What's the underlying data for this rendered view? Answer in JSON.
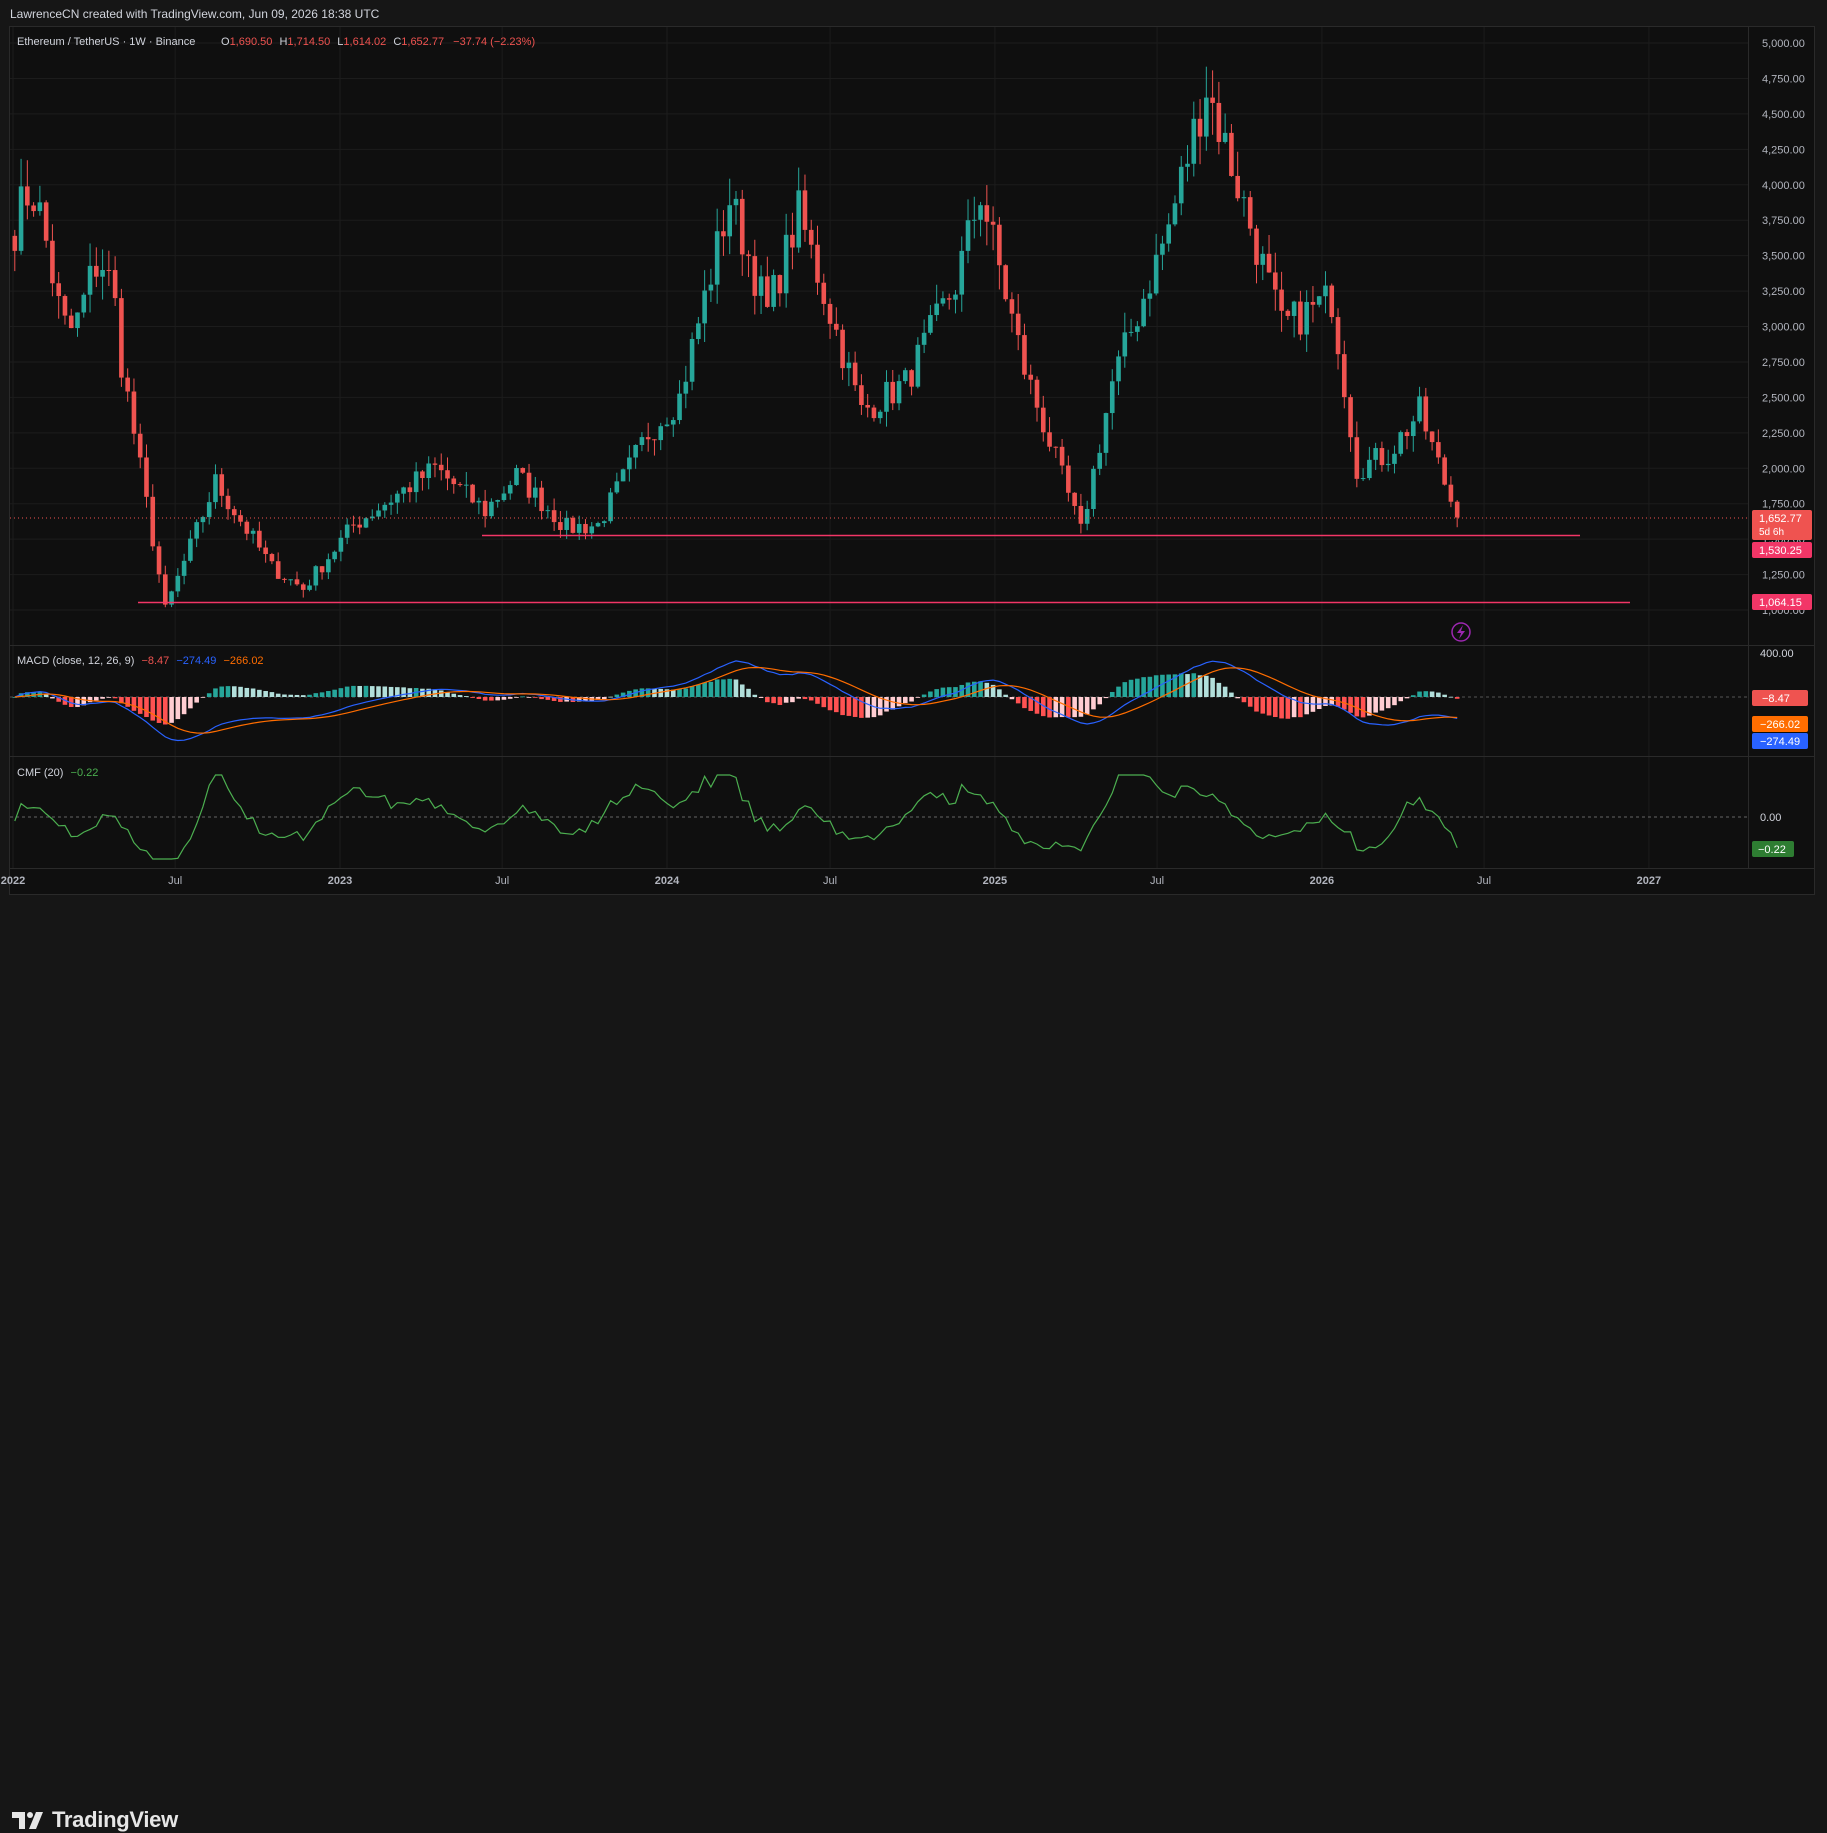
{
  "header": {
    "attribution": "LawrenceCN created with TradingView.com, Jun 09, 2026 18:38 UTC"
  },
  "legend": {
    "symbol": "Ethereum / TetherUS · 1W · Binance",
    "o_key": "O",
    "o_val": "1,690.50",
    "h_key": "H",
    "h_val": "1,714.50",
    "l_key": "L",
    "l_val": "1,614.02",
    "c_key": "C",
    "c_val": "1,652.77",
    "change": "−37.74 (−2.23%)"
  },
  "macd_legend": {
    "name": "MACD (close, 12, 26, 9)",
    "v1": "−8.47",
    "v2": "−274.49",
    "v3": "−266.02"
  },
  "cmf_legend": {
    "name": "CMF (20)",
    "v1": "−0.22"
  },
  "price_tag": {
    "price": "1,652.77",
    "countdown": "5d 6h"
  },
  "level_tags": [
    "1,530.25",
    "1,064.15"
  ],
  "macd_tags": [
    "400.00",
    "−8.47",
    "−266.02",
    "−274.49"
  ],
  "cmf_tags": [
    "0.00",
    "−0.22"
  ],
  "brand": {
    "name": "TradingView"
  },
  "colors": {
    "up": "#26a69a",
    "down": "#ef5350",
    "level": "#f23667",
    "macd": "#2962ff",
    "signal": "#ff6d00",
    "cmf": "#4caf50"
  },
  "chart_data": {
    "type": "candlestick",
    "title": "Ethereum / TetherUS · 1W · Binance",
    "interval": "1W",
    "y_axis": {
      "ticks": [
        "1,000.00",
        "1,250.00",
        "1,500.00",
        "1,750.00",
        "2,000.00",
        "2,250.00",
        "2,500.00",
        "2,750.00",
        "3,000.00",
        "3,250.00",
        "3,500.00",
        "3,750.00",
        "4,000.00",
        "4,250.00",
        "4,500.00",
        "4,750.00",
        "5,000.00"
      ],
      "range": [
        970,
        5030
      ]
    },
    "x_axis": {
      "ticks": [
        "2022",
        "Jul",
        "2023",
        "Jul",
        "2024",
        "Jul",
        "2025",
        "Jul",
        "2026",
        "Jul",
        "2027"
      ]
    },
    "keypoints": [
      [
        "2022-04-25",
        3000
      ],
      [
        "2022-06-20",
        1000
      ],
      [
        "2022-08-15",
        1900
      ],
      [
        "2022-10-17",
        1300
      ],
      [
        "2022-11-21",
        1150
      ],
      [
        "2023-01-16",
        1600
      ],
      [
        "2023-04-17",
        2000
      ],
      [
        "2023-06-12",
        1700
      ],
      [
        "2023-07-17",
        1950
      ],
      [
        "2023-09-11",
        1580
      ],
      [
        "2023-10-16",
        1600
      ],
      [
        "2023-12-11",
        2250
      ],
      [
        "2024-01-15",
        2500
      ],
      [
        "2024-03-11",
        3900
      ],
      [
        "2024-04-22",
        3100
      ],
      [
        "2024-05-27",
        3800
      ],
      [
        "2024-08-05",
        2400
      ],
      [
        "2024-09-23",
        2600
      ],
      [
        "2024-11-18",
        3300
      ],
      [
        "2024-12-16",
        3950
      ],
      [
        "2025-02-03",
        2700
      ],
      [
        "2025-04-07",
        1550
      ],
      [
        "2025-05-12",
        2600
      ],
      [
        "2025-07-14",
        3700
      ],
      [
        "2025-08-25",
        4700
      ],
      [
        "2025-09-29",
        4000
      ],
      [
        "2025-11-17",
        3000
      ],
      [
        "2026-01-12",
        3200
      ],
      [
        "2026-02-09",
        2000
      ],
      [
        "2026-03-16",
        2100
      ],
      [
        "2026-04-20",
        2400
      ],
      [
        "2026-06-01",
        1652.77
      ]
    ],
    "levels": [
      1530.25,
      1064.15
    ],
    "macd": {
      "params": "close, 12, 26, 9",
      "macd": -274.49,
      "signal": -266.02,
      "histogram": -8.47
    },
    "cmf": {
      "period": 20,
      "value": -0.22
    }
  }
}
